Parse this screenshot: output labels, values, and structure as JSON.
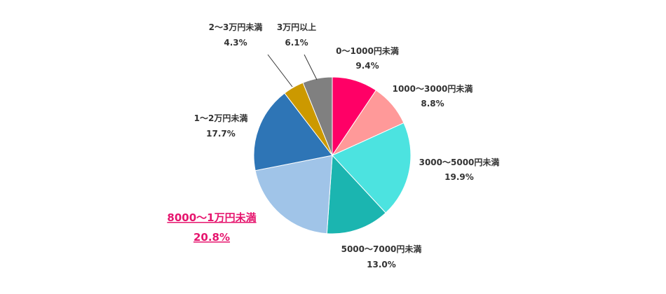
{
  "chart_data": {
    "type": "pie",
    "title": "",
    "start": "top",
    "direction": "clockwise",
    "slices": [
      {
        "label": "0〜1000円未満",
        "value": 9.4,
        "value_text": "9.4%",
        "color": "#ff0066"
      },
      {
        "label": "1000〜3000円未満",
        "value": 8.8,
        "value_text": "8.8%",
        "color": "#ff9999"
      },
      {
        "label": "3000〜5000円未満",
        "value": 19.9,
        "value_text": "19.9%",
        "color": "#4ce3e0"
      },
      {
        "label": "5000〜7000円未満",
        "value": 13.0,
        "value_text": "13.0%",
        "color": "#1bb5b0"
      },
      {
        "label": "8000〜1万円未満",
        "value": 20.8,
        "value_text": "20.8%",
        "color": "#a0c4e8",
        "highlight": true,
        "highlight_color": "#e6156e"
      },
      {
        "label": "1〜2万円未満",
        "value": 17.7,
        "value_text": "17.7%",
        "color": "#2e75b6"
      },
      {
        "label": "2〜3万円未満",
        "value": 4.3,
        "value_text": "4.3%",
        "color": "#cc9900"
      },
      {
        "label": "3万円以上",
        "value": 6.1,
        "value_text": "6.1%",
        "color": "#808080"
      }
    ]
  }
}
